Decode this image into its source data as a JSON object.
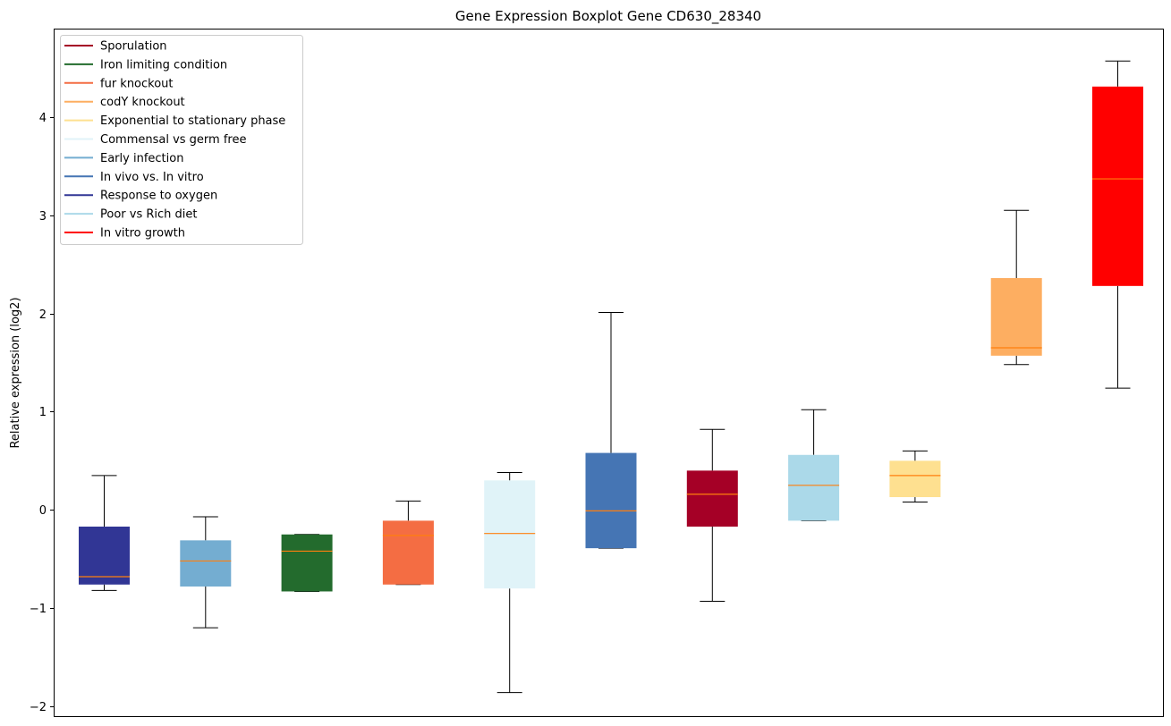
{
  "chart_data": {
    "type": "boxplot",
    "title": "Gene Expression Boxplot Gene CD630_28340",
    "xlabel": "",
    "ylabel": "Relative expression (log2)",
    "ylim": [
      -2.1,
      4.9
    ],
    "yticks": [
      -2,
      -1,
      0,
      1,
      2,
      3,
      4
    ],
    "ytick_labels": [
      "−2",
      "−1",
      "0",
      "1",
      "2",
      "3",
      "4"
    ],
    "grid": false,
    "legend_position": "top-left",
    "legend": [
      {
        "label": "Sporulation",
        "color": "#a50026"
      },
      {
        "label": "Iron limiting condition",
        "color": "#236b2d"
      },
      {
        "label": "fur knockout",
        "color": "#f46d43"
      },
      {
        "label": "codY knockout",
        "color": "#fdae61"
      },
      {
        "label": "Exponential to stationary phase",
        "color": "#fee090"
      },
      {
        "label": "Commensal vs germ free",
        "color": "#e0f3f8"
      },
      {
        "label": "Early infection",
        "color": "#74add1"
      },
      {
        "label": "In vivo vs. In vitro",
        "color": "#4575b4"
      },
      {
        "label": "Response to oxygen",
        "color": "#313695"
      },
      {
        "label": "Poor vs Rich diet",
        "color": "#abd9e9"
      },
      {
        "label": "In vitro growth",
        "color": "#ff0000"
      }
    ],
    "boxes": [
      {
        "group": "Response to oxygen",
        "color": "#313695",
        "whisker_low": -0.82,
        "q1": -0.76,
        "median": -0.68,
        "q3": -0.17,
        "whisker_high": 0.35
      },
      {
        "group": "Early infection",
        "color": "#74add1",
        "whisker_low": -1.2,
        "q1": -0.78,
        "median": -0.52,
        "q3": -0.31,
        "whisker_high": -0.07
      },
      {
        "group": "Iron limiting condition",
        "color": "#236b2d",
        "whisker_low": -0.83,
        "q1": -0.83,
        "median": -0.42,
        "q3": -0.25,
        "whisker_high": -0.25
      },
      {
        "group": "fur knockout",
        "color": "#f46d43",
        "whisker_low": -0.76,
        "q1": -0.76,
        "median": -0.26,
        "q3": -0.11,
        "whisker_high": 0.09
      },
      {
        "group": "Commensal vs germ free",
        "color": "#e0f3f8",
        "whisker_low": -1.86,
        "q1": -0.8,
        "median": -0.24,
        "q3": 0.3,
        "whisker_high": 0.38
      },
      {
        "group": "In vivo vs. In vitro",
        "color": "#4575b4",
        "whisker_low": -0.39,
        "q1": -0.39,
        "median": -0.01,
        "q3": 0.58,
        "whisker_high": 2.01
      },
      {
        "group": "Sporulation",
        "color": "#a50026",
        "whisker_low": -0.93,
        "q1": -0.17,
        "median": 0.16,
        "q3": 0.4,
        "whisker_high": 0.82
      },
      {
        "group": "Poor vs Rich diet",
        "color": "#abd9e9",
        "whisker_low": -0.11,
        "q1": -0.11,
        "median": 0.25,
        "q3": 0.56,
        "whisker_high": 1.02
      },
      {
        "group": "Exponential to stationary phase",
        "color": "#fee090",
        "whisker_low": 0.08,
        "q1": 0.13,
        "median": 0.35,
        "q3": 0.5,
        "whisker_high": 0.6
      },
      {
        "group": "codY knockout",
        "color": "#fdae61",
        "whisker_low": 1.48,
        "q1": 1.57,
        "median": 1.65,
        "q3": 2.36,
        "whisker_high": 3.05
      },
      {
        "group": "In vitro growth",
        "color": "#ff0000",
        "whisker_low": 1.24,
        "q1": 2.28,
        "median": 3.37,
        "q3": 4.31,
        "whisker_high": 4.57
      }
    ],
    "median_color": "#ff7f0e"
  }
}
